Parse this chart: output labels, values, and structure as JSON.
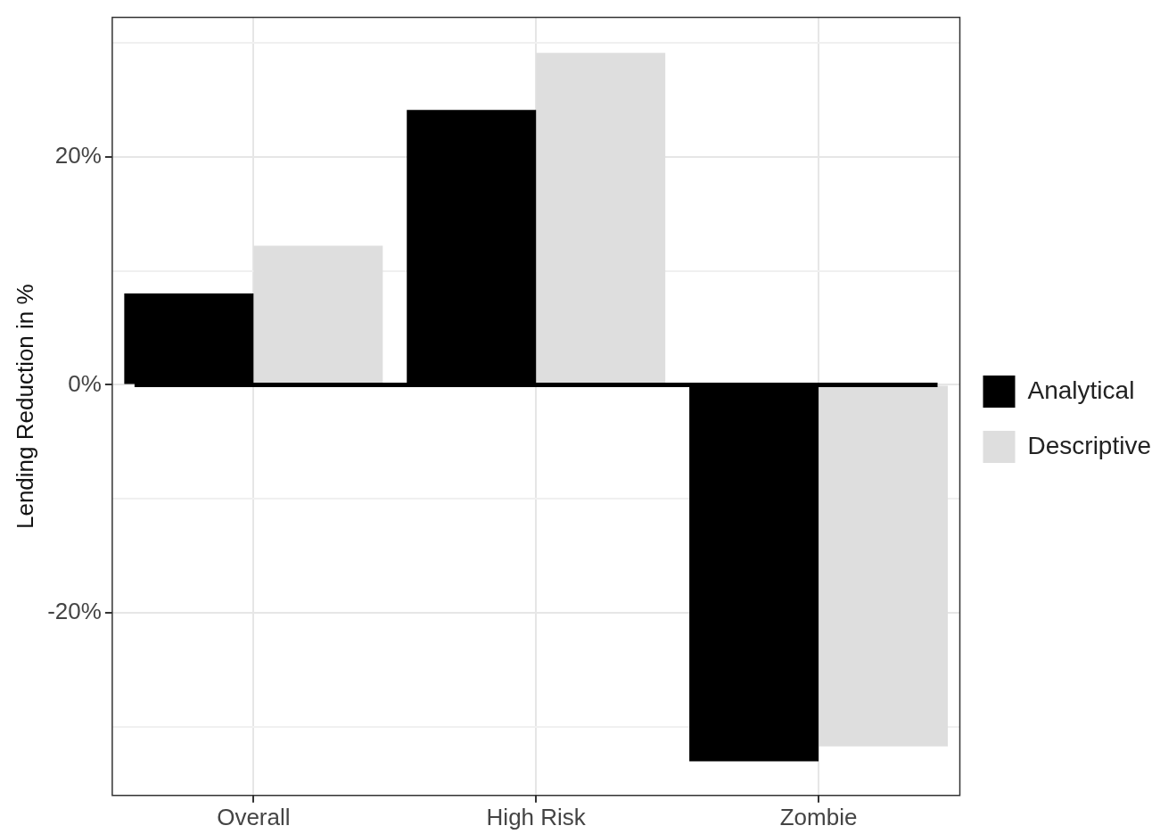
{
  "chart_data": {
    "type": "bar",
    "ylabel": "Lending Reduction in %",
    "categories": [
      "Overall",
      "High Risk",
      "Zombie"
    ],
    "series": [
      {
        "name": "Analytical",
        "color": "#000000",
        "values": [
          8.0,
          24.1,
          -33.0
        ]
      },
      {
        "name": "Descriptive",
        "color": "#dedede",
        "values": [
          12.2,
          29.1,
          -31.7
        ]
      }
    ],
    "ylim": [
      -36,
      32.2
    ],
    "yticks": [
      {
        "value": -30,
        "label": null
      },
      {
        "value": -20,
        "label": "-20%"
      },
      {
        "value": -10,
        "label": null
      },
      {
        "value": 0,
        "label": "0%"
      },
      {
        "value": 10,
        "label": null
      },
      {
        "value": 20,
        "label": "20%"
      },
      {
        "value": 30,
        "label": null
      }
    ],
    "ref_lines": [
      {
        "axis": "y",
        "value": 0,
        "color": "#000000"
      }
    ],
    "grid": true,
    "legend": "right"
  }
}
